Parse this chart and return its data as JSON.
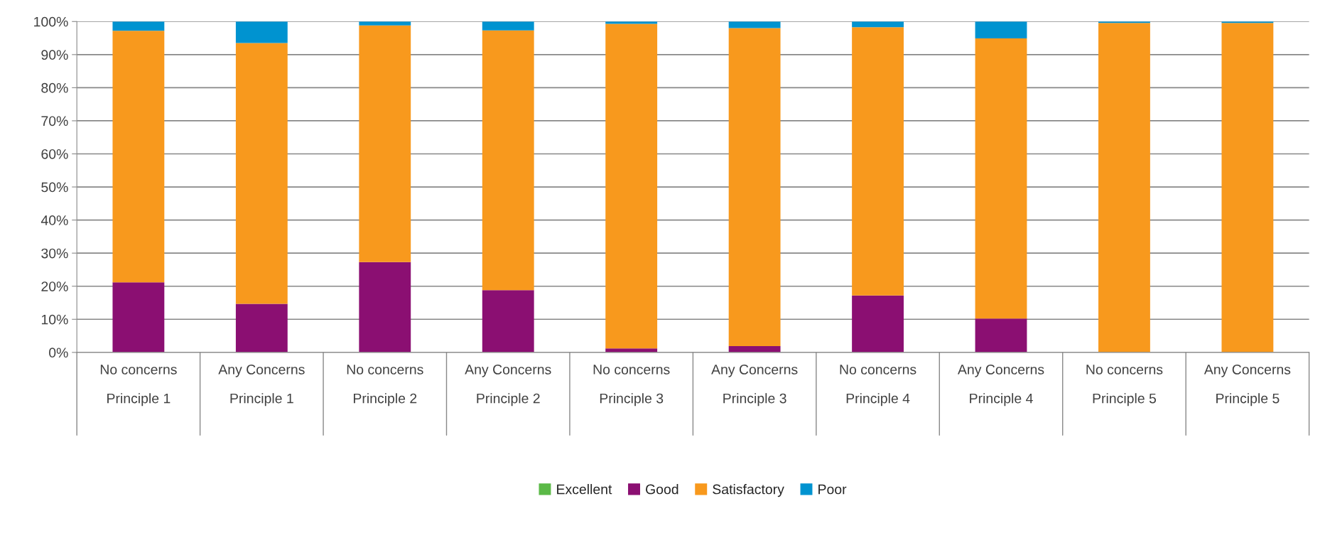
{
  "chart_data": {
    "type": "bar",
    "stacked": true,
    "categories": [
      "No concerns\nPrinciple 1",
      "Any Concerns\nPrinciple 1",
      "No concerns\nPrinciple 2",
      "Any Concerns\nPrinciple 2",
      "No concerns\nPrinciple 3",
      "Any Concerns\nPrinciple 3",
      "No concerns\nPrinciple 4",
      "Any Concerns\nPrinciple 4",
      "No concerns\nPrinciple 5",
      "Any Concerns\nPrinciple 5"
    ],
    "series": [
      {
        "name": "Excellent",
        "color": "#5bb947",
        "values": [
          0,
          0,
          0,
          0,
          0,
          0,
          0,
          0,
          0,
          0
        ]
      },
      {
        "name": "Good",
        "color": "#8b0f72",
        "values": [
          21.2,
          14.7,
          27.3,
          18.8,
          1.2,
          1.9,
          17.2,
          10.2,
          0,
          0
        ]
      },
      {
        "name": "Satisfactory",
        "color": "#f8991d",
        "values": [
          76.0,
          78.8,
          71.5,
          78.5,
          98.1,
          96.1,
          81.1,
          84.7,
          99.6,
          99.6
        ]
      },
      {
        "name": "Poor",
        "color": "#0093d0",
        "values": [
          2.8,
          6.5,
          1.2,
          2.7,
          0.7,
          2.0,
          1.7,
          5.1,
          0.4,
          0.4
        ]
      }
    ],
    "ylim": [
      0,
      100
    ],
    "yticks": [
      {
        "value": 0,
        "label": "0%"
      },
      {
        "value": 10,
        "label": "10%"
      },
      {
        "value": 20,
        "label": "20%"
      },
      {
        "value": 30,
        "label": "30%"
      },
      {
        "value": 40,
        "label": "40%"
      },
      {
        "value": 50,
        "label": "50%"
      },
      {
        "value": 60,
        "label": "60%"
      },
      {
        "value": 70,
        "label": "70%"
      },
      {
        "value": 80,
        "label": "80%"
      },
      {
        "value": 90,
        "label": "90%"
      },
      {
        "value": 100,
        "label": "100%"
      }
    ],
    "grid": "y",
    "legend": "bottom"
  }
}
